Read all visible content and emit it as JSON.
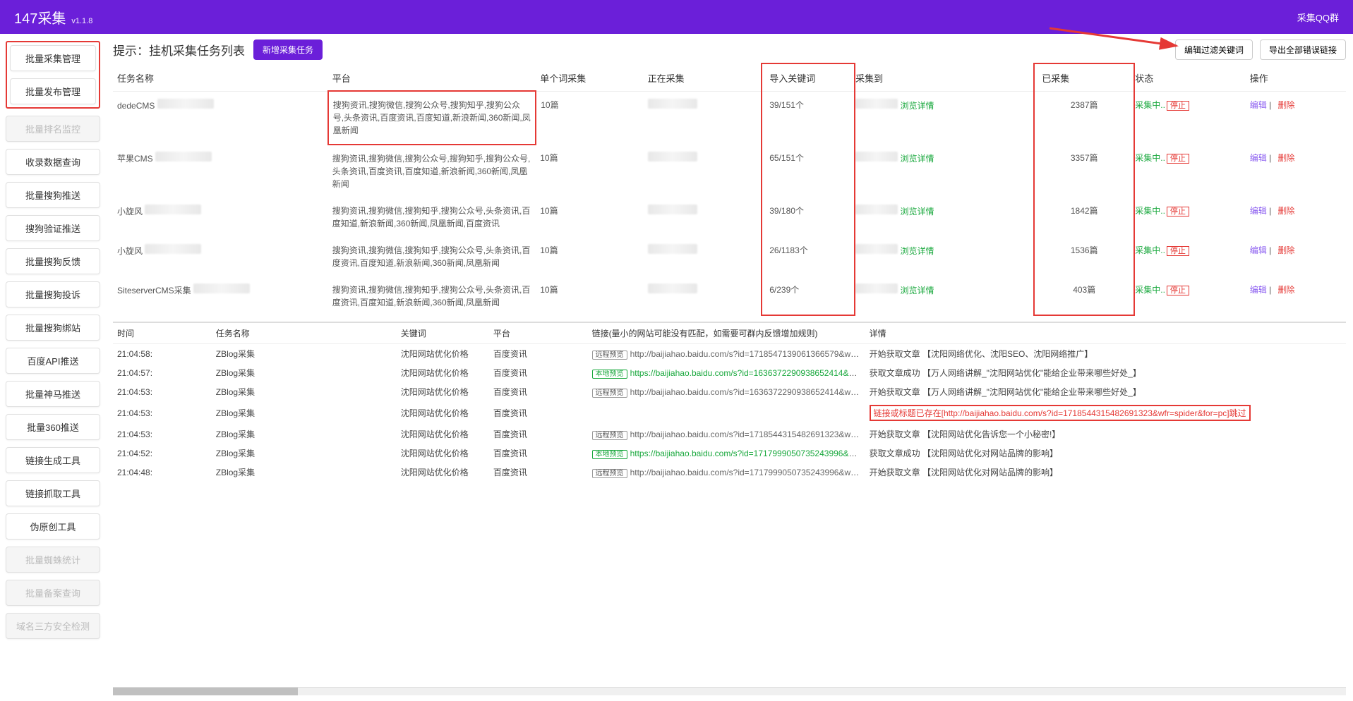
{
  "header": {
    "title": "147采集",
    "version": "v1.1.8",
    "qq_group": "采集QQ群"
  },
  "sidebar": {
    "items": [
      {
        "label": "批量采集管理",
        "disabled": false,
        "highlight": true
      },
      {
        "label": "批量发布管理",
        "disabled": false,
        "highlight": true
      },
      {
        "label": "批量排名监控",
        "disabled": true
      },
      {
        "label": "收录数据查询",
        "disabled": false
      },
      {
        "label": "批量搜狗推送",
        "disabled": false
      },
      {
        "label": "搜狗验证推送",
        "disabled": false
      },
      {
        "label": "批量搜狗反馈",
        "disabled": false
      },
      {
        "label": "批量搜狗投诉",
        "disabled": false
      },
      {
        "label": "批量搜狗绑站",
        "disabled": false
      },
      {
        "label": "百度API推送",
        "disabled": false
      },
      {
        "label": "批量神马推送",
        "disabled": false
      },
      {
        "label": "批量360推送",
        "disabled": false
      },
      {
        "label": "链接生成工具",
        "disabled": false
      },
      {
        "label": "链接抓取工具",
        "disabled": false
      },
      {
        "label": "伪原创工具",
        "disabled": false
      },
      {
        "label": "批量蜘蛛统计",
        "disabled": true
      },
      {
        "label": "批量备案查询",
        "disabled": true
      },
      {
        "label": "域名三方安全检测",
        "disabled": true
      }
    ]
  },
  "page": {
    "title": "提示：挂机采集任务列表",
    "new_task_btn": "新增采集任务",
    "edit_filter_btn": "编辑过滤关键词",
    "export_errors_btn": "导出全部错误链接"
  },
  "task_table": {
    "columns": {
      "name": "任务名称",
      "platform": "平台",
      "single": "单个词采集",
      "collecting": "正在采集",
      "keywords": "导入关键词",
      "collected_to": "采集到",
      "collected": "已采集",
      "status": "状态",
      "action": "操作"
    },
    "status_running": "采集中..",
    "stop_label": "停止",
    "edit_label": "编辑",
    "delete_label": "删除",
    "detail_label": "浏览详情",
    "rows": [
      {
        "name": "dedeCMS",
        "platform": "搜狗资讯,搜狗微信,搜狗公众号,搜狗知乎,搜狗公众号,头条资讯,百度资讯,百度知道,新浪新闻,360新闻,凤凰新闻",
        "single": "10篇",
        "keywords": "39/151个",
        "collected": "2387篇"
      },
      {
        "name": "苹果CMS",
        "platform": "搜狗资讯,搜狗微信,搜狗公众号,搜狗知乎,搜狗公众号,头条资讯,百度资讯,百度知道,新浪新闻,360新闻,凤凰新闻",
        "single": "10篇",
        "keywords": "65/151个",
        "collected": "3357篇"
      },
      {
        "name": "小旋风",
        "platform": "搜狗资讯,搜狗微信,搜狗知乎,搜狗公众号,头条资讯,百度知道,新浪新闻,360新闻,凤凰新闻,百度资讯",
        "single": "10篇",
        "keywords": "39/180个",
        "collected": "1842篇"
      },
      {
        "name": "小旋风",
        "platform": "搜狗资讯,搜狗微信,搜狗知乎,搜狗公众号,头条资讯,百度资讯,百度知道,新浪新闻,360新闻,凤凰新闻",
        "single": "10篇",
        "keywords": "26/1183个",
        "collected": "1536篇"
      },
      {
        "name": "SiteserverCMS采集",
        "platform": "搜狗资讯,搜狗微信,搜狗知乎,搜狗公众号,头条资讯,百度资讯,百度知道,新浪新闻,360新闻,凤凰新闻",
        "single": "10篇",
        "keywords": "6/239个",
        "collected": "403篇"
      }
    ]
  },
  "log_table": {
    "columns": {
      "time": "时间",
      "task": "任务名称",
      "keyword": "关键词",
      "platform": "平台",
      "link": "链接(量小的网站可能没有匹配，如需要可群内反馈增加规则)",
      "detail": "详情"
    },
    "remote_preview": "远程预览",
    "local_preview": "本地预览",
    "rows": [
      {
        "time": "21:04:58:",
        "task": "ZBlog采集",
        "keyword": "沈阳网站优化价格",
        "platform": "百度资讯",
        "link_type": "remote",
        "link": "http://baijiahao.baidu.com/s?id=1718547139061366579&wfr=s...",
        "detail": "开始获取文章 【沈阳网络优化、沈阳SEO、沈阳网络推广】",
        "detail_style": "normal"
      },
      {
        "time": "21:04:57:",
        "task": "ZBlog采集",
        "keyword": "沈阳网站优化价格",
        "platform": "百度资讯",
        "link_type": "local",
        "link": "https://baijiahao.baidu.com/s?id=1636372290938652414&wfr=s...",
        "detail": "获取文章成功 【万人网络讲解_\"沈阳网站优化\"能给企业带来哪些好处_】",
        "detail_style": "normal"
      },
      {
        "time": "21:04:53:",
        "task": "ZBlog采集",
        "keyword": "沈阳网站优化价格",
        "platform": "百度资讯",
        "link_type": "remote",
        "link": "http://baijiahao.baidu.com/s?id=1636372290938652414&wfr=s...",
        "detail": "开始获取文章 【万人网络讲解_\"沈阳网站优化\"能给企业带来哪些好处_】",
        "detail_style": "normal"
      },
      {
        "time": "21:04:53:",
        "task": "ZBlog采集",
        "keyword": "沈阳网站优化价格",
        "platform": "百度资讯",
        "link_type": "",
        "link": "",
        "detail": "链接或标题已存在[http://baijiahao.baidu.com/s?id=1718544315482691323&wfr=spider&for=pc]跳过",
        "detail_style": "red_box"
      },
      {
        "time": "21:04:53:",
        "task": "ZBlog采集",
        "keyword": "沈阳网站优化价格",
        "platform": "百度资讯",
        "link_type": "remote",
        "link": "http://baijiahao.baidu.com/s?id=1718544315482691323&wfr=s...",
        "detail": "开始获取文章 【沈阳网站优化告诉您一个小秘密!】",
        "detail_style": "normal"
      },
      {
        "time": "21:04:52:",
        "task": "ZBlog采集",
        "keyword": "沈阳网站优化价格",
        "platform": "百度资讯",
        "link_type": "local",
        "link": "https://baijiahao.baidu.com/s?id=1717999050735243996&wfr=s...",
        "detail": "获取文章成功 【沈阳网站优化对网站品牌的影响】",
        "detail_style": "normal"
      },
      {
        "time": "21:04:48:",
        "task": "ZBlog采集",
        "keyword": "沈阳网站优化价格",
        "platform": "百度资讯",
        "link_type": "remote",
        "link": "http://baijiahao.baidu.com/s?id=1717999050735243996&wfr=s...",
        "detail": "开始获取文章 【沈阳网站优化对网站品牌的影响】",
        "detail_style": "normal"
      }
    ]
  },
  "colors": {
    "header_bg": "#6b1fd9",
    "highlight_border": "#e53935",
    "green": "#19a83d",
    "purple": "#8a5cf0"
  }
}
